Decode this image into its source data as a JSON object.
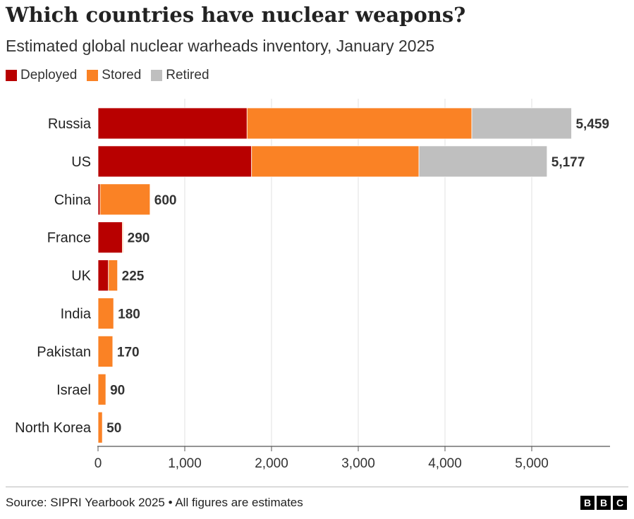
{
  "header": {
    "title": "Which countries have nuclear weapons?",
    "subtitle": "Estimated global nuclear warheads inventory, January 2025"
  },
  "legend": [
    {
      "label": "Deployed",
      "color": "#b80000"
    },
    {
      "label": "Stored",
      "color": "#fa8225"
    },
    {
      "label": "Retired",
      "color": "#bfbfbf"
    }
  ],
  "chart_data": {
    "type": "bar",
    "orientation": "horizontal",
    "stacked": true,
    "categories": [
      "Russia",
      "US",
      "China",
      "France",
      "UK",
      "India",
      "Pakistan",
      "Israel",
      "North Korea"
    ],
    "series": [
      {
        "name": "Deployed",
        "color": "#b80000",
        "values": [
          1718,
          1770,
          24,
          280,
          120,
          0,
          0,
          0,
          0
        ]
      },
      {
        "name": "Stored",
        "color": "#fa8225",
        "values": [
          2591,
          1930,
          576,
          10,
          105,
          180,
          170,
          90,
          50
        ]
      },
      {
        "name": "Retired",
        "color": "#bfbfbf",
        "values": [
          1150,
          1477,
          0,
          0,
          0,
          0,
          0,
          0,
          0
        ]
      }
    ],
    "totals": [
      "5,459",
      "5,177",
      "600",
      "290",
      "225",
      "180",
      "170",
      "90",
      "50"
    ],
    "xlim": [
      0,
      5900
    ],
    "xticks": [
      0,
      1000,
      2000,
      3000,
      4000,
      5000
    ],
    "xtick_labels": [
      "0",
      "1,000",
      "2,000",
      "3,000",
      "4,000",
      "5,000"
    ],
    "grid": true,
    "legend_position": "top-left"
  },
  "footer": {
    "source": "Source: SIPRI Yearbook 2025 • All figures are estimates",
    "logo_letters": [
      "B",
      "B",
      "C"
    ]
  }
}
